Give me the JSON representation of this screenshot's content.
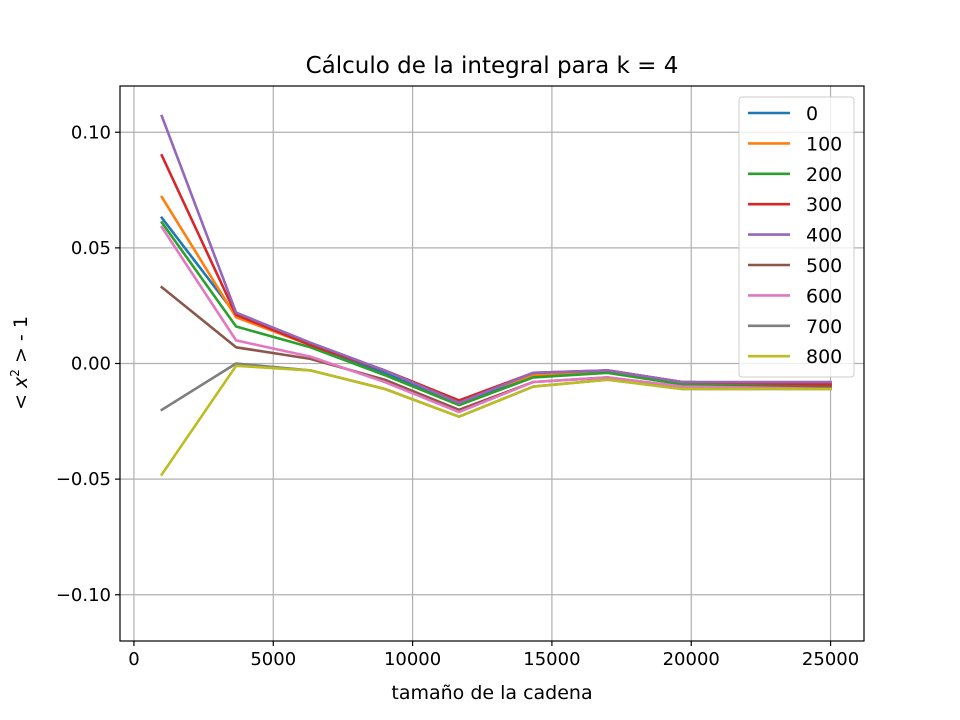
{
  "chart_data": {
    "type": "line",
    "title": "Cálculo de la integral para k = 4",
    "xlabel": "tamaño de la cadena",
    "ylabel_prefix": "< ",
    "ylabel_var": "x",
    "ylabel_sup": "2",
    "ylabel_suffix": " > - 1",
    "xlim": [
      -500,
      26200
    ],
    "ylim": [
      -0.12,
      0.12
    ],
    "grid": true,
    "legend_position": "top-right",
    "x_ticks": [
      0,
      5000,
      10000,
      15000,
      20000,
      25000
    ],
    "x_tick_labels": [
      "0",
      "5000",
      "10000",
      "15000",
      "20000",
      "25000"
    ],
    "y_ticks": [
      -0.1,
      -0.05,
      0.0,
      0.05,
      0.1
    ],
    "y_tick_labels": [
      "−0.10",
      "−0.05",
      "0.00",
      "0.05",
      "0.10"
    ],
    "x": [
      1000,
      3667,
      6333,
      9000,
      11667,
      14333,
      17000,
      19667,
      25000
    ],
    "series": [
      {
        "name": "0",
        "color": "#1f77b4",
        "values": [
          0.063,
          0.021,
          0.008,
          -0.004,
          -0.017,
          -0.005,
          -0.003,
          -0.008,
          -0.009
        ]
      },
      {
        "name": "100",
        "color": "#ff7f0e",
        "values": [
          0.072,
          0.02,
          0.008,
          -0.003,
          -0.016,
          -0.005,
          -0.003,
          -0.008,
          -0.009
        ]
      },
      {
        "name": "200",
        "color": "#2ca02c",
        "values": [
          0.061,
          0.016,
          0.007,
          -0.005,
          -0.018,
          -0.006,
          -0.004,
          -0.009,
          -0.01
        ]
      },
      {
        "name": "300",
        "color": "#d62728",
        "values": [
          0.09,
          0.021,
          0.008,
          -0.003,
          -0.016,
          -0.004,
          -0.003,
          -0.008,
          -0.009
        ]
      },
      {
        "name": "400",
        "color": "#9467bd",
        "values": [
          0.107,
          0.022,
          0.009,
          -0.003,
          -0.017,
          -0.004,
          -0.003,
          -0.008,
          -0.008
        ]
      },
      {
        "name": "500",
        "color": "#8c564b",
        "values": [
          0.033,
          0.007,
          0.002,
          -0.007,
          -0.02,
          -0.008,
          -0.006,
          -0.01,
          -0.01
        ]
      },
      {
        "name": "600",
        "color": "#e377c2",
        "values": [
          0.059,
          0.01,
          0.003,
          -0.008,
          -0.021,
          -0.008,
          -0.006,
          -0.01,
          -0.011
        ]
      },
      {
        "name": "700",
        "color": "#7f7f7f",
        "values": [
          -0.02,
          0.0,
          -0.003,
          -0.011,
          -0.023,
          -0.01,
          -0.007,
          -0.011,
          -0.011
        ]
      },
      {
        "name": "800",
        "color": "#bcbd22",
        "values": [
          -0.048,
          -0.001,
          -0.003,
          -0.011,
          -0.023,
          -0.01,
          -0.007,
          -0.011,
          -0.011
        ]
      }
    ]
  }
}
